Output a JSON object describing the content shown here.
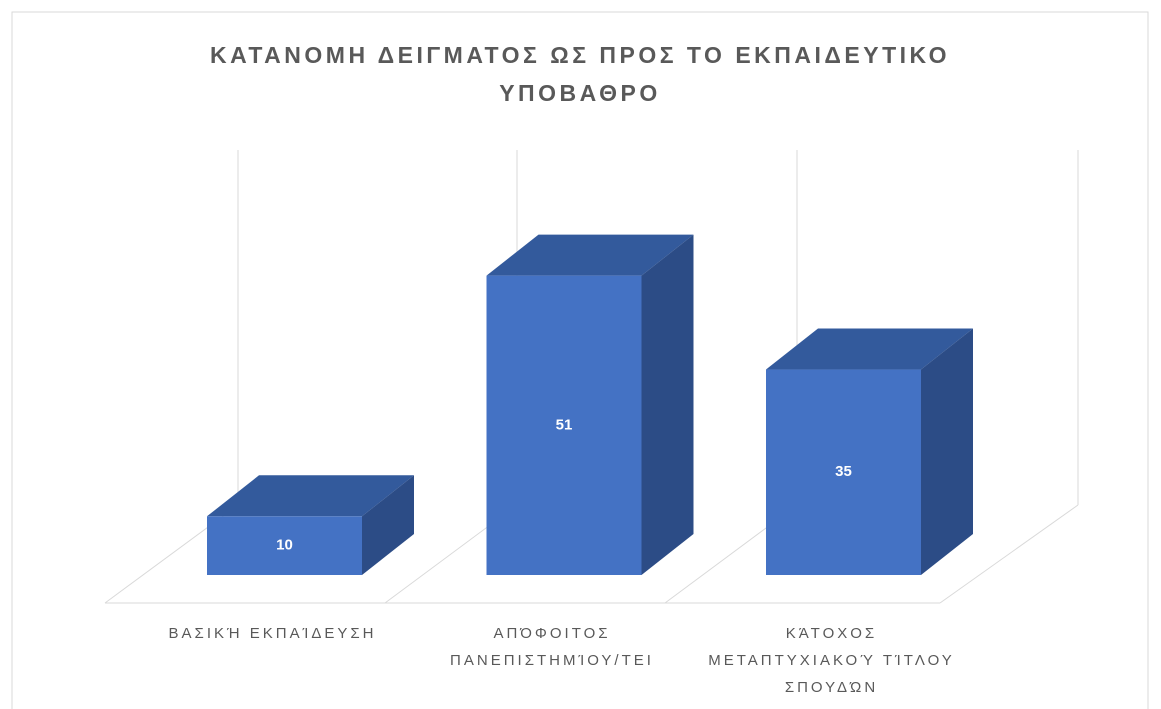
{
  "chart_data": {
    "type": "bar3d",
    "title": "ΚΑΤΑΝΟΜΗ ΔΕΙΓΜΑΤΟΣ ΩΣ ΠΡΟΣ ΤΟ ΕΚΠΑΙΔΕΥΤΙΚΟ ΥΠΟΒΑΘΡΟ",
    "categories": [
      "ΒΑΣΙΚΉ ΕΚΠΑΊΔΕΥΣΗ",
      "ΑΠΌΦΟΙΤΟΣ ΠΑΝΕΠΙΣΤΗΜΊΟΥ/ΤΕΙ",
      "ΚΆΤΟΧΟΣ ΜΕΤΑΠΤΥΧΙΑΚΟΎ ΤΊΤΛΟΥ ΣΠΟΥΔΏΝ"
    ],
    "values": [
      10,
      51,
      35
    ],
    "color": "#4472c4"
  }
}
